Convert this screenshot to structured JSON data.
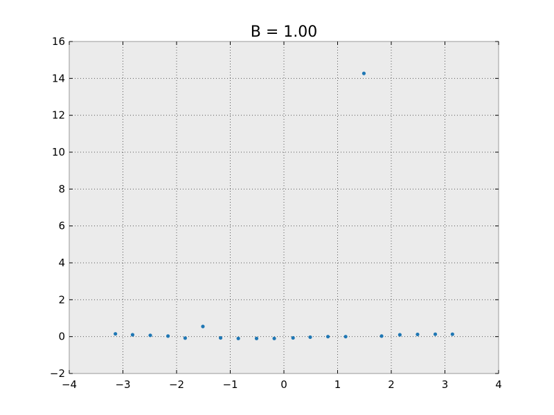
{
  "chart_data": {
    "type": "scatter",
    "title": "B = 1.00",
    "xlabel": "",
    "ylabel": "",
    "xlim": [
      -4,
      4
    ],
    "ylim": [
      -2,
      16
    ],
    "xticks": [
      -4,
      -3,
      -2,
      -1,
      0,
      1,
      2,
      3,
      4
    ],
    "yticks": [
      -2,
      0,
      2,
      4,
      6,
      8,
      10,
      12,
      14,
      16
    ],
    "xtick_labels": [
      "−4",
      "−3",
      "−2",
      "−1",
      "0",
      "1",
      "2",
      "3",
      "4"
    ],
    "ytick_labels": [
      "−2",
      "0",
      "2",
      "4",
      "6",
      "8",
      "10",
      "12",
      "14",
      "16"
    ],
    "grid": true,
    "legend": "none",
    "colors": {
      "background": "#ebebeb",
      "point": "#1f77b4",
      "grid": "#555555",
      "frame": "#999999"
    },
    "series": [
      {
        "x": [
          -3.14,
          -2.82,
          -2.49,
          -2.16,
          -1.84,
          -1.51,
          -1.18,
          -0.85,
          -0.51,
          -0.18,
          0.17,
          0.49,
          0.82,
          1.15,
          1.49,
          1.82,
          2.16,
          2.49,
          2.82,
          3.14
        ],
        "y": [
          0.15,
          0.1,
          0.07,
          0.03,
          -0.08,
          0.55,
          -0.07,
          -0.1,
          -0.1,
          -0.1,
          -0.07,
          -0.03,
          0.0,
          0.0,
          14.27,
          0.03,
          0.1,
          0.12,
          0.13,
          0.13
        ]
      }
    ]
  }
}
